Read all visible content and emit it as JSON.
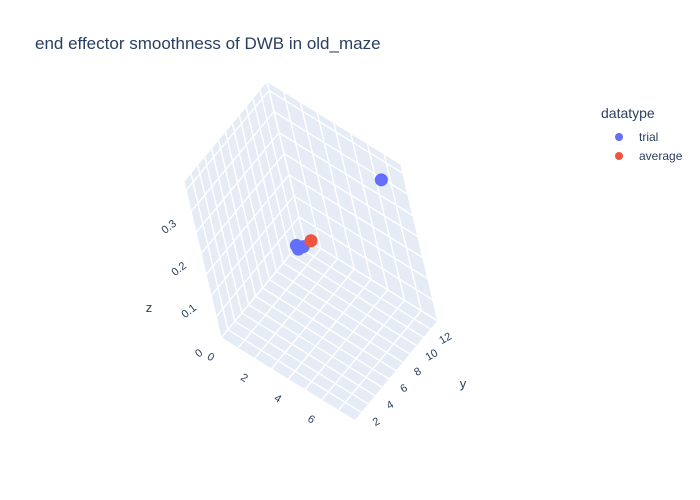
{
  "chart_data": {
    "type": "scatter",
    "subtype": "3d-scatter",
    "title": "end effector smoothness of DWB in old_maze",
    "legend_title": "datatype",
    "xlabel": "",
    "ylabel": "y",
    "zlabel": "z",
    "x_ticks": [
      "0",
      "2",
      "4",
      "6"
    ],
    "y_ticks": [
      "2",
      "4",
      "6",
      "8",
      "10",
      "12"
    ],
    "z_ticks": [
      "0",
      "0.1",
      "0.2",
      "0.3"
    ],
    "xlim": [
      0,
      8
    ],
    "ylim": [
      1,
      13
    ],
    "zlim": [
      0,
      0.37
    ],
    "series": [
      {
        "name": "trial",
        "color": "#636efa",
        "points": [
          {
            "x": 7.0,
            "y": 12.0,
            "z": 0.33
          },
          {
            "x": 4.4,
            "y": 5.0,
            "z": 0.24
          },
          {
            "x": 4.2,
            "y": 5.2,
            "z": 0.24
          },
          {
            "x": 4.6,
            "y": 5.3,
            "z": 0.245
          },
          {
            "x": 4.3,
            "y": 5.1,
            "z": 0.242
          }
        ]
      },
      {
        "name": "average",
        "color": "#ef553b",
        "points": [
          {
            "x": 4.8,
            "y": 6.0,
            "z": 0.25
          }
        ]
      }
    ]
  }
}
